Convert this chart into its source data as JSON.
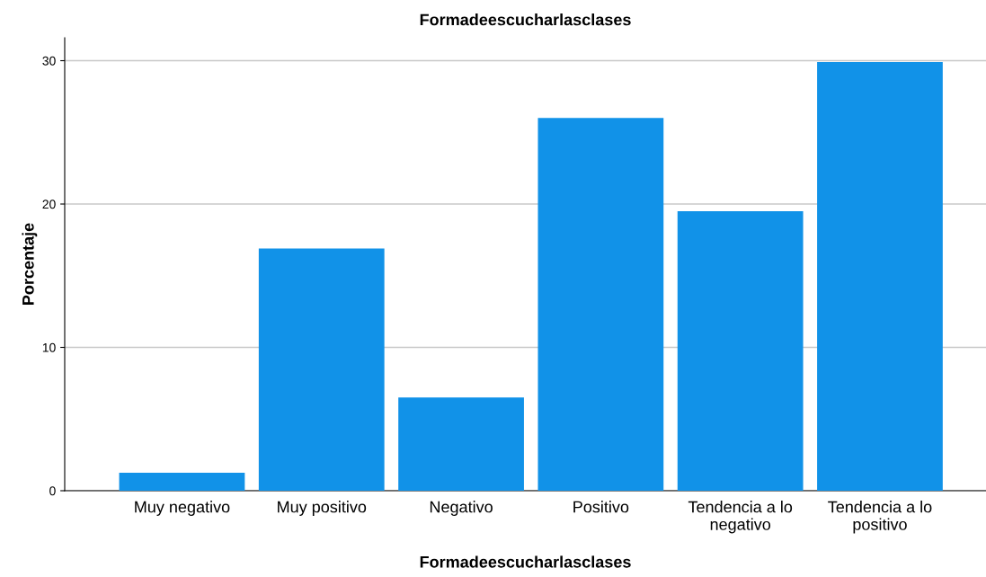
{
  "chart_data": {
    "type": "bar",
    "title": "Formadeescucharlasclases",
    "xlabel": "Formadeescucharlasclases",
    "ylabel": "Porcentaje",
    "categories": [
      "Muy negativo",
      "Muy positivo",
      "Negativo",
      "Positivo",
      "Tendencia a lo\nnegativo",
      "Tendencia a lo\npositivo"
    ],
    "values": [
      1.25,
      16.9,
      6.5,
      26.0,
      19.5,
      29.9
    ],
    "color": "#1192e8",
    "ylim": [
      0,
      31.6
    ],
    "yticks": [
      0,
      10,
      20,
      30
    ],
    "grid": "y"
  }
}
